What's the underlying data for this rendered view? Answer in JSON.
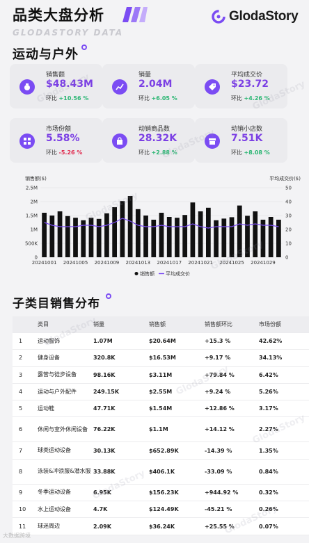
{
  "header": {
    "title": "品类大盘分析",
    "subtitle": "GLODASTORY DATA",
    "logo_text": "GlodaStory"
  },
  "section1": {
    "title": "运动与户外"
  },
  "kpis": [
    {
      "label": "销售额",
      "value": "$48.43M",
      "change_label": "环比",
      "change": "+10.56 %",
      "dir": "up",
      "icon": "money-bag-icon"
    },
    {
      "label": "销量",
      "value": "2.04M",
      "change_label": "环比",
      "change": "+6.05 %",
      "dir": "up",
      "icon": "trend-chart-icon"
    },
    {
      "label": "平均成交价",
      "value": "$23.72",
      "change_label": "环比",
      "change": "+4.26 %",
      "dir": "up",
      "icon": "price-tag-icon"
    },
    {
      "label": "市场份额",
      "value": "5.58%",
      "change_label": "环比",
      "change": "-5.26 %",
      "dir": "down",
      "icon": "grid-icon"
    },
    {
      "label": "动销商品数",
      "value": "28.32K",
      "change_label": "环比",
      "change": "+2.88 %",
      "dir": "up",
      "icon": "shopping-bag-icon"
    },
    {
      "label": "动销小店数",
      "value": "7.51K",
      "change_label": "环比",
      "change": "+8.08 %",
      "dir": "up",
      "icon": "store-icon"
    }
  ],
  "chart_data": {
    "type": "bar",
    "left_axis_label": "销售额($)",
    "right_axis_label": "平均成交价($)",
    "left_ticks": [
      "0",
      "500K",
      "1M",
      "1.5M",
      "2M",
      "2.5M"
    ],
    "right_ticks": [
      "0",
      "10",
      "20",
      "30",
      "40",
      "50"
    ],
    "ylim": [
      0,
      2500000
    ],
    "y2lim": [
      0,
      50
    ],
    "x_tick_labels": [
      "20241001",
      "20241005",
      "20241009",
      "20241013",
      "20241017",
      "20241021",
      "20241025",
      "20241029"
    ],
    "categories": [
      "20241001",
      "20241002",
      "20241003",
      "20241004",
      "20241005",
      "20241006",
      "20241007",
      "20241008",
      "20241009",
      "20241010",
      "20241011",
      "20241012",
      "20241013",
      "20241014",
      "20241015",
      "20241016",
      "20241017",
      "20241018",
      "20241019",
      "20241020",
      "20241021",
      "20241022",
      "20241023",
      "20241024",
      "20241025",
      "20241026",
      "20241027",
      "20241028",
      "20241029",
      "20241030",
      "20241031"
    ],
    "series": [
      {
        "name": "销售额",
        "kind": "bar",
        "values": [
          1600000,
          1500000,
          1650000,
          1480000,
          1420000,
          1330000,
          1420000,
          1380000,
          1580000,
          1800000,
          2020000,
          2200000,
          1730000,
          1500000,
          1350000,
          1600000,
          1450000,
          1420000,
          1520000,
          1970000,
          1650000,
          1780000,
          1330000,
          1390000,
          1440000,
          1860000,
          1490000,
          1650000,
          1350000,
          1450000,
          1350000
        ]
      },
      {
        "name": "平均成交价",
        "kind": "line",
        "values": [
          25,
          23,
          22,
          22,
          22,
          23,
          23,
          22,
          23,
          25,
          28,
          26,
          23,
          22,
          22,
          23,
          22,
          22,
          22,
          24,
          22,
          21,
          22,
          22,
          22,
          24,
          23,
          24,
          23,
          23,
          22
        ]
      }
    ],
    "legend": "bottom"
  },
  "section2": {
    "title": "子类目销售分布"
  },
  "table": {
    "columns": [
      "类目",
      "销量",
      "销售额",
      "销售额环比",
      "市场份额"
    ],
    "rows": [
      {
        "idx": "1",
        "name": "运动服饰",
        "qty": "1.07M",
        "sales": "$20.64M",
        "chg": "+15.3 %",
        "dir": "up",
        "share": "42.62%"
      },
      {
        "idx": "2",
        "name": "健身设备",
        "qty": "320.8K",
        "sales": "$16.53M",
        "chg": "+9.17 %",
        "dir": "up",
        "share": "34.13%"
      },
      {
        "idx": "3",
        "name": "露营与徒步设备",
        "qty": "98.16K",
        "sales": "$3.11M",
        "chg": "+79.84 %",
        "dir": "up",
        "share": "6.42%"
      },
      {
        "idx": "4",
        "name": "运动与户外配件",
        "qty": "249.15K",
        "sales": "$2.55M",
        "chg": "+9.24 %",
        "dir": "up",
        "share": "5.26%"
      },
      {
        "idx": "5",
        "name": "运动鞋",
        "qty": "47.71K",
        "sales": "$1.54M",
        "chg": "+12.86 %",
        "dir": "up",
        "share": "3.17%"
      },
      {
        "idx": "6",
        "name": "休闲与室外休闲设备",
        "qty": "76.22K",
        "sales": "$1.1M",
        "chg": "+14.12 %",
        "dir": "up",
        "share": "2.27%"
      },
      {
        "idx": "7",
        "name": "球类运动设备",
        "qty": "30.13K",
        "sales": "$652.89K",
        "chg": "-14.39 %",
        "dir": "down",
        "share": "1.35%"
      },
      {
        "idx": "8",
        "name": "泳装&冲浪服&潜水服",
        "qty": "33.88K",
        "sales": "$406.1K",
        "chg": "-33.09 %",
        "dir": "down",
        "share": "0.84%"
      },
      {
        "idx": "9",
        "name": "冬季运动设备",
        "qty": "6.95K",
        "sales": "$156.23K",
        "chg": "+944.92 %",
        "dir": "up",
        "share": "0.32%"
      },
      {
        "idx": "10",
        "name": "水上运动设备",
        "qty": "4.7K",
        "sales": "$124.49K",
        "chg": "-45.21 %",
        "dir": "down",
        "share": "0.26%"
      },
      {
        "idx": "11",
        "name": "球迷周边",
        "qty": "2.09K",
        "sales": "$36.24K",
        "chg": "+25.55 %",
        "dir": "up",
        "share": "0.07%"
      }
    ]
  },
  "watermark": "GlodaStory",
  "footer": "大数据跨境",
  "colors": {
    "accent": "#7b4cf3",
    "up": "#2bb673",
    "down": "#e0294d",
    "bar": "#111111",
    "line": "#7b4cf3"
  }
}
